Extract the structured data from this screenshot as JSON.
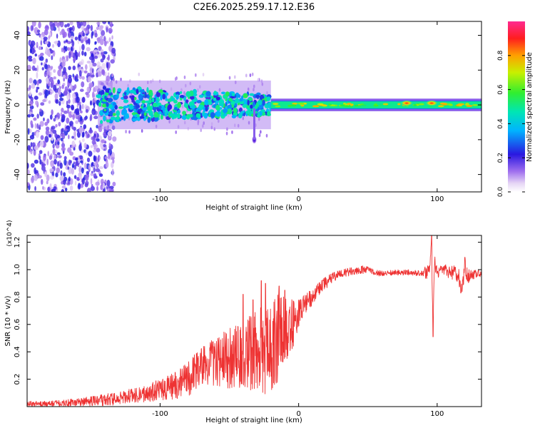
{
  "figure_title": "C2E6.2025.259.17.12.E36",
  "chart_data": [
    {
      "type": "heatmap",
      "title": "C2E6.2025.259.17.12.E36",
      "xlabel": "Height of straight line (km)",
      "ylabel": "Frequency (Hz)",
      "xlim": [
        -196,
        132
      ],
      "ylim": [
        -50,
        48
      ],
      "xticks": [
        -100,
        0,
        100
      ],
      "xtick_labels": [
        "-100",
        "0",
        "100"
      ],
      "yticks": [
        -40,
        -20,
        0,
        20,
        40
      ],
      "ytick_labels": [
        "-40",
        "-20",
        "0",
        "20",
        "40"
      ],
      "colorbar": {
        "label": "Normalized spectral amplitude",
        "range": [
          0,
          1
        ],
        "ticks": [
          0.0,
          0.2,
          0.4,
          0.6,
          0.8
        ],
        "tick_labels": [
          "0.0",
          "0.2",
          "0.4",
          "0.6",
          "0.8"
        ]
      },
      "features": [
        {
          "description": "diffuse noise",
          "x_range": [
            -196,
            -145
          ],
          "freq_range": [
            -50,
            48
          ],
          "amplitude": 0.15
        },
        {
          "description": "wide band",
          "x_range": [
            -145,
            -20
          ],
          "freq_range": [
            -10,
            10
          ],
          "amplitude": 0.35
        },
        {
          "description": "narrow line",
          "x_range": [
            -20,
            132
          ],
          "freq_range": [
            -2,
            2
          ],
          "amplitude": 0.5
        },
        {
          "description": "hot spot",
          "x": 78,
          "freq": 1,
          "amplitude": 0.85
        },
        {
          "description": "hot spot",
          "x": 96,
          "freq": 1,
          "amplitude": 0.8
        },
        {
          "description": "isolated blob",
          "x": -32,
          "freq": -20,
          "amplitude": 0.25
        }
      ]
    },
    {
      "type": "line",
      "xlabel": "Height of straight line (km)",
      "ylabel": "SNR (10 * v/v)",
      "y_multiplier": "(x10^4)",
      "xlim": [
        -196,
        132
      ],
      "ylim": [
        0,
        1.25
      ],
      "xticks": [
        -100,
        0,
        100
      ],
      "xtick_labels": [
        "-100",
        "0",
        "100"
      ],
      "yticks": [
        0.2,
        0.4,
        0.6,
        0.8,
        1.0,
        1.2
      ],
      "ytick_labels": [
        "0.2",
        "0.4",
        "0.6",
        "0.8",
        "1.0",
        "1.2"
      ],
      "series": [
        {
          "name": "SNR",
          "color": "#ee3333",
          "x": [
            -196,
            -180,
            -160,
            -150,
            -140,
            -130,
            -120,
            -110,
            -100,
            -90,
            -80,
            -75,
            -70,
            -60,
            -50,
            -40,
            -30,
            -20,
            -10,
            -5,
            0,
            5,
            10,
            15,
            20,
            25,
            30,
            35,
            40,
            45,
            50,
            55,
            60,
            70,
            80,
            90,
            94,
            96,
            97,
            98,
            100,
            105,
            110,
            115,
            118,
            120,
            122,
            125,
            130,
            132
          ],
          "values": [
            0.02,
            0.02,
            0.03,
            0.04,
            0.05,
            0.06,
            0.08,
            0.1,
            0.12,
            0.15,
            0.2,
            0.26,
            0.3,
            0.33,
            0.35,
            0.38,
            0.4,
            0.43,
            0.55,
            0.6,
            0.7,
            0.76,
            0.8,
            0.86,
            0.91,
            0.95,
            0.97,
            0.98,
            0.99,
            1.0,
            1.0,
            0.98,
            0.97,
            0.98,
            0.98,
            0.97,
            0.99,
            1.2,
            0.5,
            1.05,
            0.98,
            1.0,
            0.98,
            0.97,
            0.85,
            1.02,
            0.95,
            0.96,
            0.97,
            0.96
          ]
        }
      ],
      "noise_envelope": {
        "x": [
          -196,
          -180,
          -160,
          -145,
          -130,
          -115,
          -100,
          -90,
          -80,
          -70,
          -60,
          -50,
          -40,
          -30,
          -22,
          -18,
          -12,
          -8,
          -4,
          0,
          5,
          10,
          15,
          20,
          30,
          45,
          60,
          90,
          92,
          94,
          96,
          98,
          100,
          110,
          115,
          120,
          125,
          132
        ],
        "amplitude": [
          0.02,
          0.02,
          0.03,
          0.04,
          0.05,
          0.06,
          0.08,
          0.1,
          0.13,
          0.15,
          0.18,
          0.22,
          0.26,
          0.3,
          0.35,
          0.35,
          0.3,
          0.26,
          0.2,
          0.12,
          0.08,
          0.06,
          0.05,
          0.05,
          0.03,
          0.03,
          0.02,
          0.02,
          0.06,
          0.06,
          0.06,
          0.06,
          0.04,
          0.05,
          0.06,
          0.06,
          0.04,
          0.02
        ]
      },
      "spikes": [
        {
          "x": -40,
          "y": 0.82
        },
        {
          "x": -33,
          "y": 0.78
        },
        {
          "x": -27,
          "y": 0.92
        },
        {
          "x": -24,
          "y": 0.9
        },
        {
          "x": -14,
          "y": 0.88
        },
        {
          "x": -10,
          "y": 0.85
        },
        {
          "x": 96,
          "y": 1.25
        },
        {
          "x": 97,
          "y": 0.51
        },
        {
          "x": 120,
          "y": 1.09
        }
      ]
    }
  ]
}
